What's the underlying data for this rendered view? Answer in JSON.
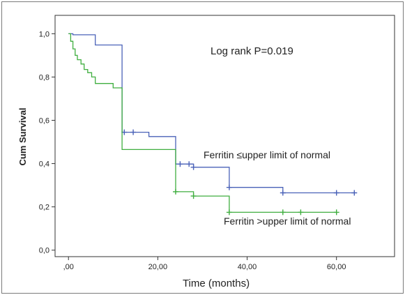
{
  "chart_data": {
    "type": "line",
    "title": "",
    "xlabel": "Time (months)",
    "ylabel": "Cum Survival",
    "xlim": [
      -3,
      73
    ],
    "ylim": [
      -0.03,
      1.085
    ],
    "x_ticks": [
      0,
      20,
      40,
      60
    ],
    "x_tick_labels": [
      ",00",
      "20,00",
      "40,00",
      "60,00"
    ],
    "y_ticks": [
      0,
      0.2,
      0.4,
      0.6,
      0.8,
      1.0
    ],
    "y_tick_labels": [
      "0,0",
      "0,2",
      "0,4",
      "0,6",
      "0,8",
      "1,0"
    ],
    "grid": false,
    "annotation": "Log rank P=0.019",
    "series": [
      {
        "name": "Ferritin ≤upper limit of normal",
        "color": "#4a62b8",
        "steps": [
          [
            0,
            1.0
          ],
          [
            1,
            0.995
          ],
          [
            6,
            0.948
          ],
          [
            12,
            0.545
          ],
          [
            18,
            0.525
          ],
          [
            24,
            0.398
          ],
          [
            28,
            0.383
          ],
          [
            36,
            0.29
          ],
          [
            48,
            0.265
          ],
          [
            64,
            0.265
          ]
        ],
        "censored": [
          [
            12.5,
            0.545
          ],
          [
            14.5,
            0.545
          ],
          [
            25,
            0.398
          ],
          [
            27,
            0.398
          ],
          [
            28,
            0.383
          ],
          [
            36,
            0.29
          ],
          [
            48,
            0.265
          ],
          [
            60,
            0.265
          ],
          [
            64,
            0.265
          ]
        ]
      },
      {
        "name": "Ferritin >upper limit of normal",
        "color": "#3fae3f",
        "steps": [
          [
            0,
            1.0
          ],
          [
            0.5,
            0.965
          ],
          [
            1,
            0.93
          ],
          [
            1.5,
            0.9
          ],
          [
            2,
            0.88
          ],
          [
            2.8,
            0.86
          ],
          [
            3.5,
            0.835
          ],
          [
            4.3,
            0.82
          ],
          [
            5.2,
            0.8
          ],
          [
            6,
            0.77
          ],
          [
            10,
            0.75
          ],
          [
            12,
            0.465
          ],
          [
            24,
            0.27
          ],
          [
            28,
            0.25
          ],
          [
            36,
            0.175
          ],
          [
            60,
            0.175
          ]
        ],
        "censored": [
          [
            24,
            0.27
          ],
          [
            28,
            0.25
          ],
          [
            36,
            0.175
          ],
          [
            48,
            0.175
          ],
          [
            52,
            0.175
          ],
          [
            60,
            0.175
          ]
        ]
      }
    ]
  }
}
